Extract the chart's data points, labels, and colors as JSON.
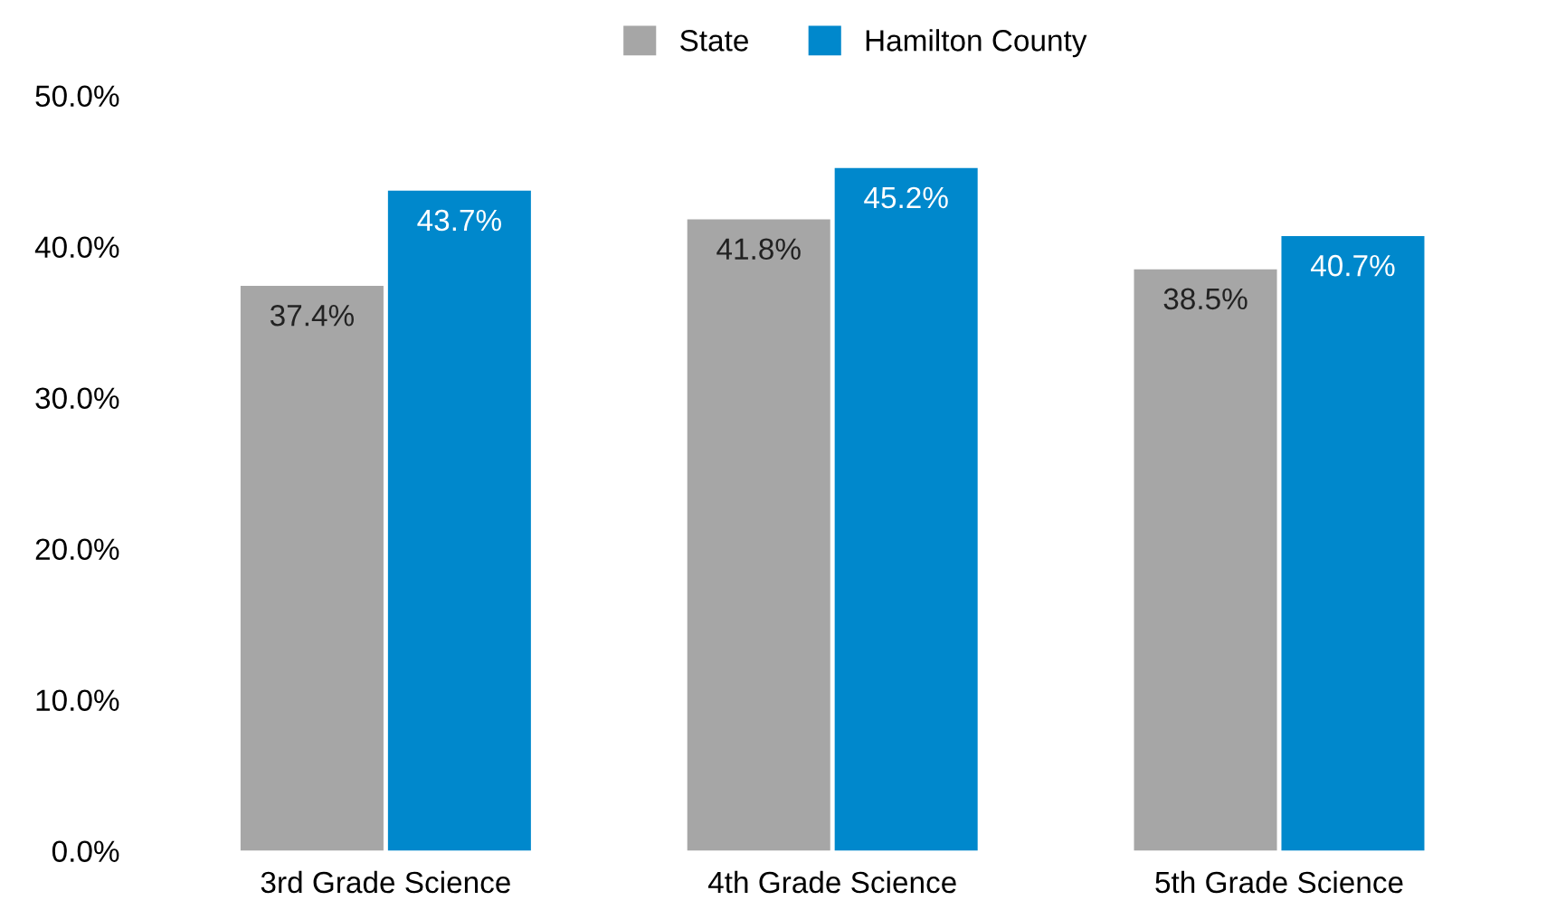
{
  "chart_data": {
    "type": "bar",
    "categories": [
      "3rd Grade Science",
      "4th Grade Science",
      "5th Grade Science"
    ],
    "series": [
      {
        "name": "State",
        "color": "#a6a6a6",
        "values": [
          37.4,
          41.8,
          38.5
        ],
        "value_labels": [
          "37.4%",
          "41.8%",
          "38.5%"
        ]
      },
      {
        "name": "Hamilton County",
        "color": "#0088cc",
        "values": [
          43.7,
          45.2,
          40.7
        ],
        "value_labels": [
          "43.7%",
          "45.2%",
          "40.7%"
        ]
      }
    ],
    "ylim": [
      0,
      50
    ],
    "yticks": [
      {
        "value": 0,
        "label": "0.0%"
      },
      {
        "value": 10,
        "label": "10.0%"
      },
      {
        "value": 20,
        "label": "20.0%"
      },
      {
        "value": 30,
        "label": "30.0%"
      },
      {
        "value": 40,
        "label": "40.0%"
      },
      {
        "value": 50,
        "label": "50.0%"
      }
    ],
    "grid": false,
    "legend": "top"
  }
}
